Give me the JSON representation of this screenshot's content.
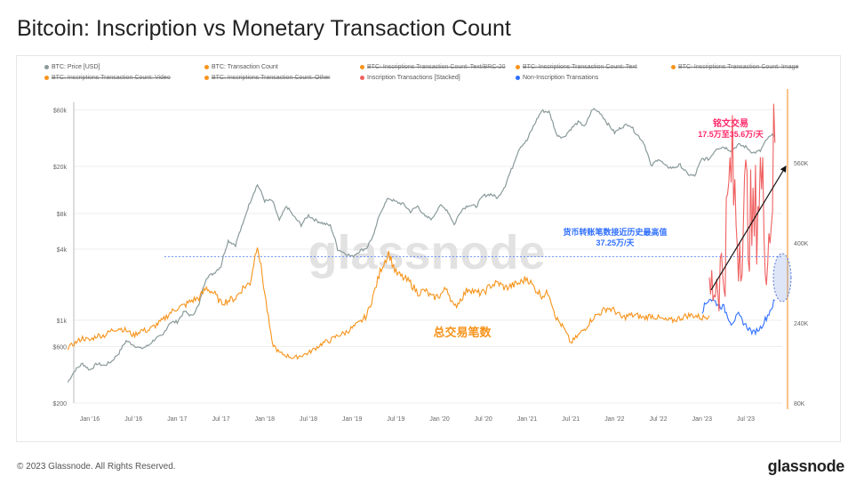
{
  "title": "Bitcoin: Inscription vs Monetary Transaction Count",
  "footer": "© 2023 Glassnode. All Rights Reserved.",
  "logo": "glassnode",
  "watermark": "glassnode",
  "legend": [
    {
      "label": "BTC: Price [USD]",
      "color": "#8a9a9b",
      "active": true
    },
    {
      "label": "BTC: Transaction Count",
      "color": "#f7931a",
      "active": true
    },
    {
      "label": "BTC: Inscriptions Transaction Count: Text/BRC-20",
      "color": "#f7931a",
      "active": false
    },
    {
      "label": "BTC: Inscriptions Transaction Count: Text",
      "color": "#f7931a",
      "active": false
    },
    {
      "label": "BTC: Inscriptions Transaction Count: Image",
      "color": "#f7931a",
      "active": false
    },
    {
      "label": "BTC: Inscriptions Transaction Count: Video",
      "color": "#f7931a",
      "active": false
    },
    {
      "label": "BTC: Inscriptions Transaction Count: Other",
      "color": "#f7931a",
      "active": false
    },
    {
      "label": "Inscription Transactions [Stacked]",
      "color": "#f06060",
      "active": true
    },
    {
      "label": "Non-Inscription Transations",
      "color": "#2f6fff",
      "active": true
    }
  ],
  "chart_data": {
    "type": "line",
    "title": "Bitcoin: Inscription vs Monetary Transaction Count",
    "x_ticks": [
      "Jan '16",
      "Jul '16",
      "Jan '17",
      "Jul '17",
      "Jan '18",
      "Jul '18",
      "Jan '19",
      "Jul '19",
      "Jan '20",
      "Jul '20",
      "Jan '21",
      "Jul '21",
      "Jan '22",
      "Jul '22",
      "Jan '23",
      "Jul '23"
    ],
    "y_left": {
      "scale": "log",
      "ticks": [
        "$200",
        "$600",
        "$1k",
        "$4k",
        "$8k",
        "$20k",
        "$60k"
      ],
      "tick_values": [
        200,
        600,
        1000,
        4000,
        8000,
        20000,
        60000
      ],
      "range": [
        200,
        80000
      ]
    },
    "y_right": {
      "scale": "linear",
      "ticks": [
        "80K",
        "240K",
        "400K",
        "560K"
      ],
      "tick_values": [
        80,
        240,
        400,
        560
      ],
      "range": [
        80,
        680
      ],
      "unit": "K"
    },
    "x_start": "2015-10",
    "series": [
      {
        "name": "BTC: Price [USD]",
        "axis": "left",
        "color": "#8a9a9b",
        "values": [
          300,
          380,
          430,
          380,
          430,
          415,
          450,
          530,
          670,
          620,
          575,
          610,
          700,
          740,
          960,
          970,
          1190,
          1080,
          1350,
          2300,
          2500,
          2870,
          4700,
          4340,
          6450,
          10000,
          14000,
          10200,
          10300,
          6900,
          9200,
          7500,
          6400,
          7700,
          7000,
          6600,
          6300,
          4000,
          3700,
          3450,
          3850,
          4100,
          5300,
          8500,
          10800,
          10000,
          9600,
          8300,
          9200,
          7500,
          7200,
          9350,
          8600,
          6400,
          8600,
          9450,
          9150,
          11300,
          11650,
          10800,
          13800,
          19700,
          29000,
          33100,
          45200,
          58800,
          57700,
          37300,
          35000,
          41500,
          47100,
          43800,
          61300,
          57000,
          46300,
          38500,
          43200,
          45500,
          37700,
          31800,
          19900,
          23300,
          20000,
          19400,
          20500,
          17200,
          16500,
          23100,
          23100,
          28500,
          29200,
          27200,
          30500,
          29200,
          26000,
          27000,
          34500,
          37500
        ]
      },
      {
        "name": "BTC: Transaction Count",
        "axis": "right",
        "color": "#f7931a",
        "values": [
          190,
          200,
          210,
          205,
          215,
          215,
          225,
          230,
          225,
          215,
          225,
          225,
          235,
          245,
          260,
          270,
          275,
          285,
          290,
          310,
          300,
          280,
          285,
          290,
          310,
          320,
          400,
          300,
          200,
          180,
          175,
          170,
          175,
          180,
          190,
          200,
          205,
          215,
          220,
          230,
          240,
          255,
          300,
          350,
          380,
          340,
          330,
          320,
          300,
          305,
          290,
          295,
          310,
          270,
          290,
          310,
          300,
          300,
          315,
          320,
          310,
          315,
          320,
          330,
          310,
          295,
          300,
          250,
          230,
          200,
          215,
          230,
          250,
          260,
          270,
          265,
          250,
          255,
          255,
          250,
          255,
          250,
          245,
          245,
          250,
          255,
          255,
          250,
          255
        ]
      },
      {
        "name": "Non-Inscription Transations",
        "axis": "right",
        "color": "#2f6fff",
        "x_start": "2023-01",
        "values": [
          265,
          290,
          280,
          270,
          240,
          255,
          235,
          220,
          230,
          255,
          285
        ]
      },
      {
        "name": "Inscription Transactions [Stacked]",
        "axis": "right",
        "color": "#f06060",
        "x_start": "2023-02",
        "values": [
          300,
          330,
          350,
          560,
          400,
          480,
          420,
          530,
          380,
          600
        ]
      }
    ],
    "reference_line": {
      "value": 372.5,
      "axis": "right",
      "style": "dashed",
      "color": "#4a7bff"
    },
    "annotations": [
      {
        "text": "铭文交易",
        "color": "#ff2a6a"
      },
      {
        "text": "17.5万至35.6万/天",
        "color": "#ff2a6a"
      },
      {
        "text": "货币转账笔数接近历史最高值",
        "color": "#2f6fff"
      },
      {
        "text": "37.25万/天",
        "color": "#2f6fff"
      },
      {
        "text": "总交易笔数",
        "color": "#f7931a"
      }
    ],
    "grid": true,
    "legend_position": "top"
  }
}
